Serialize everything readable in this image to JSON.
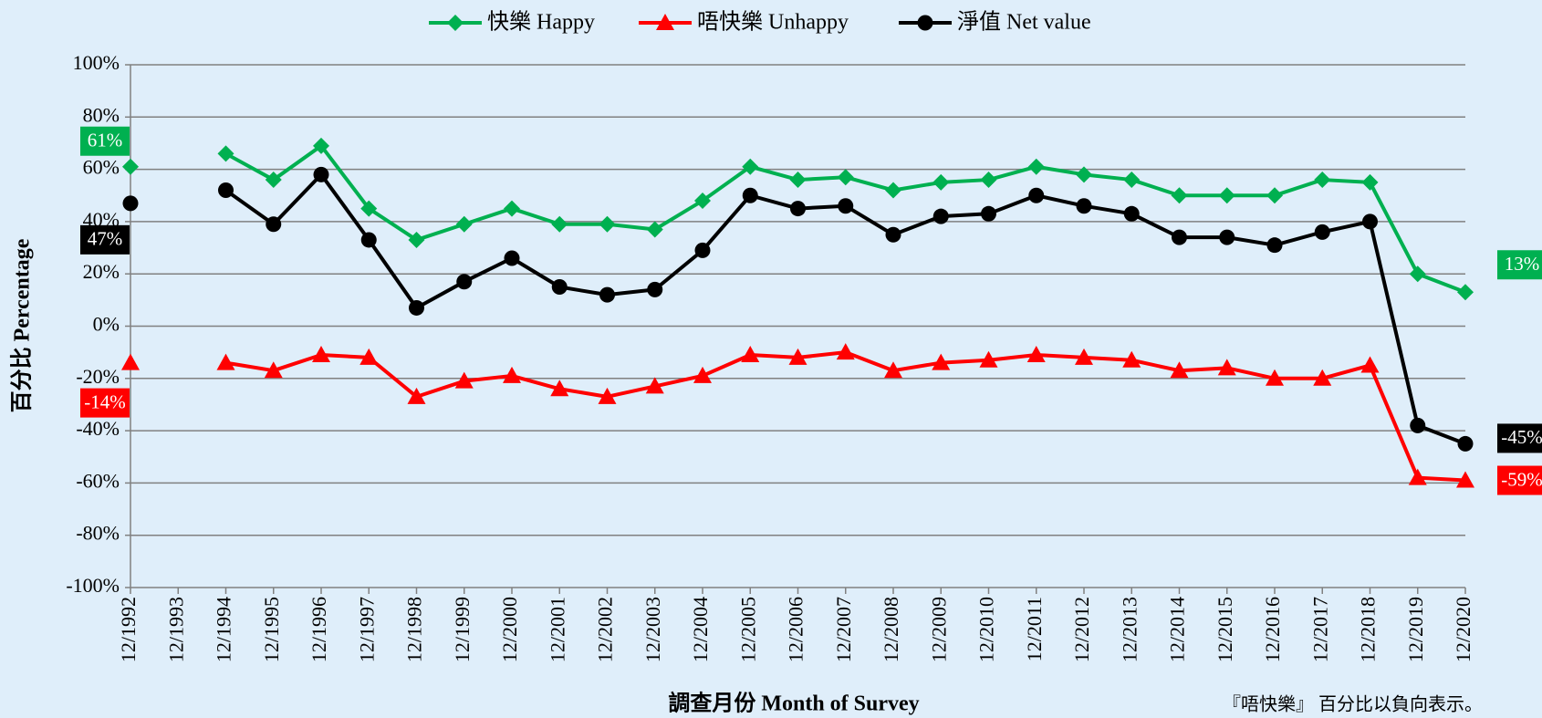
{
  "chart_data": {
    "type": "line",
    "x_label": "調查月份 Month of Survey",
    "y_label": "百分比 Percentage",
    "footnote": "『唔快樂』 百分比以負向表示。",
    "categories": [
      "12/1992",
      "12/1993",
      "12/1994",
      "12/1995",
      "12/1996",
      "12/1997",
      "12/1998",
      "12/1999",
      "12/2000",
      "12/2001",
      "12/2002",
      "12/2003",
      "12/2004",
      "12/2005",
      "12/2006",
      "12/2007",
      "12/2008",
      "12/2009",
      "12/2010",
      "12/2011",
      "12/2012",
      "12/2013",
      "12/2014",
      "12/2015",
      "12/2016",
      "12/2017",
      "12/2018",
      "12/2019",
      "12/2020"
    ],
    "series": [
      {
        "name": "快樂 Happy",
        "color": "#00b050",
        "marker": "diamond",
        "values": [
          61,
          null,
          66,
          56,
          69,
          45,
          33,
          39,
          45,
          39,
          39,
          37,
          48,
          61,
          56,
          57,
          52,
          55,
          56,
          61,
          58,
          56,
          50,
          50,
          50,
          56,
          55,
          20,
          13
        ],
        "value_labels": [
          "61%",
          null,
          null,
          null,
          null,
          null,
          null,
          null,
          null,
          null,
          null,
          null,
          null,
          null,
          null,
          null,
          null,
          null,
          null,
          null,
          null,
          null,
          null,
          null,
          null,
          null,
          null,
          null,
          "13%"
        ]
      },
      {
        "name": "唔快樂 Unhappy",
        "color": "#ff0000",
        "marker": "triangle",
        "values": [
          -14,
          null,
          -14,
          -17,
          -11,
          -12,
          -27,
          -21,
          -19,
          -24,
          -27,
          -23,
          -19,
          -11,
          -12,
          -10,
          -17,
          -14,
          -13,
          -11,
          -12,
          -13,
          -17,
          -16,
          -20,
          -20,
          -15,
          -58,
          -59
        ],
        "value_labels": [
          "-14%",
          null,
          null,
          null,
          null,
          null,
          null,
          null,
          null,
          null,
          null,
          null,
          null,
          null,
          null,
          null,
          null,
          null,
          null,
          null,
          null,
          null,
          null,
          null,
          null,
          null,
          null,
          null,
          "-59%"
        ]
      },
      {
        "name": "淨值 Net value",
        "color": "#000000",
        "marker": "circle",
        "values": [
          47,
          null,
          52,
          39,
          58,
          33,
          7,
          17,
          26,
          15,
          12,
          14,
          29,
          50,
          45,
          46,
          35,
          42,
          43,
          50,
          46,
          43,
          34,
          34,
          31,
          36,
          40,
          -38,
          -45
        ],
        "value_labels": [
          "47%",
          null,
          null,
          null,
          null,
          null,
          null,
          null,
          null,
          null,
          null,
          null,
          null,
          null,
          null,
          null,
          null,
          null,
          null,
          null,
          null,
          null,
          null,
          null,
          null,
          null,
          null,
          null,
          "-45%"
        ]
      }
    ],
    "ylim": [
      -100,
      100
    ],
    "yticks": [
      {
        "value": -100,
        "label": "-100%"
      },
      {
        "value": -80,
        "label": "-80%"
      },
      {
        "value": -60,
        "label": "-60%"
      },
      {
        "value": -40,
        "label": "-40%"
      },
      {
        "value": -20,
        "label": "-20%"
      },
      {
        "value": 0,
        "label": "0%"
      },
      {
        "value": 20,
        "label": "20%"
      },
      {
        "value": 40,
        "label": "40%"
      },
      {
        "value": 60,
        "label": "60%"
      },
      {
        "value": 80,
        "label": "80%"
      },
      {
        "value": 100,
        "label": "100%"
      }
    ],
    "grid": true,
    "legend": "top"
  }
}
